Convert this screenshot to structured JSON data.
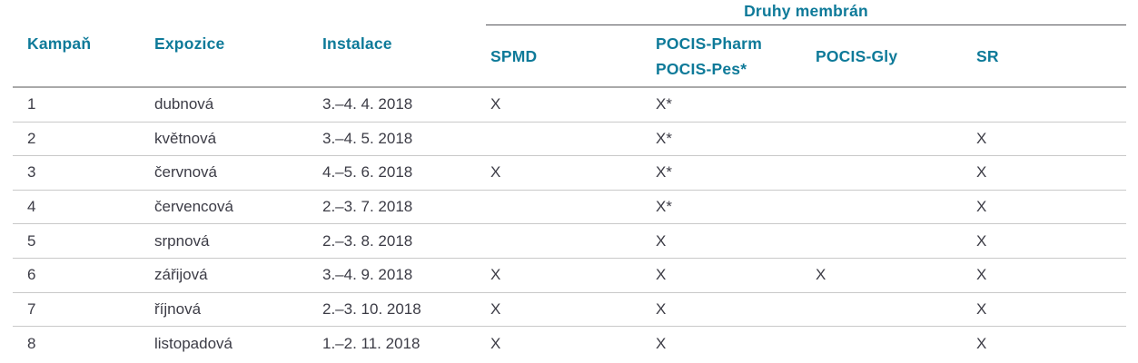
{
  "colors": {
    "header_text": "#0e7a99",
    "body_text": "#3c3c46",
    "row_line": "#c9c9c9",
    "header_rule": "#a9a9a9",
    "group_rule": "#55555a"
  },
  "header": {
    "group_label": "Druhy membrán",
    "columns": [
      "Kampaň",
      "Expozice",
      "Instalace",
      "SPMD",
      "POCIS-Pharm\nPOCIS-Pes*",
      "POCIS-Gly",
      "SR"
    ]
  },
  "rows": [
    {
      "cells": [
        "1",
        "dubnová",
        "3.–4. 4. 2018",
        "X",
        "X*",
        "",
        ""
      ]
    },
    {
      "cells": [
        "2",
        "květnová",
        "3.–4. 5. 2018",
        "",
        "X*",
        "",
        "X"
      ]
    },
    {
      "cells": [
        "3",
        "červnová",
        "4.–5. 6. 2018",
        "X",
        "X*",
        "",
        "X"
      ]
    },
    {
      "cells": [
        "4",
        "červencová",
        "2.–3. 7. 2018",
        "",
        "X*",
        "",
        "X"
      ]
    },
    {
      "cells": [
        "5",
        "srpnová",
        "2.–3. 8. 2018",
        "",
        "X",
        "",
        "X"
      ]
    },
    {
      "cells": [
        "6",
        "zářijová",
        "3.–4. 9. 2018",
        "X",
        "X",
        "X",
        "X"
      ]
    },
    {
      "cells": [
        "7",
        "říjnová",
        "2.–3. 10. 2018",
        "X",
        "X",
        "",
        "X"
      ]
    },
    {
      "cells": [
        "8",
        "listopadová",
        "1.–2. 11. 2018",
        "X",
        "X",
        "",
        "X"
      ]
    }
  ]
}
